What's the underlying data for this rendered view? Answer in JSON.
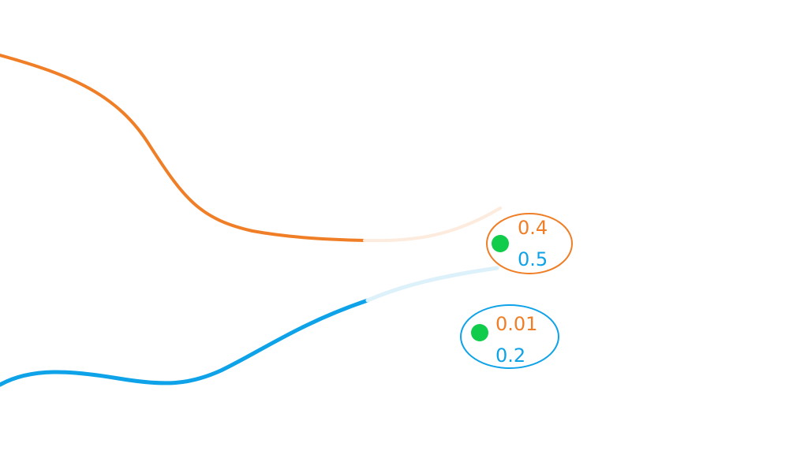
{
  "colors": {
    "orange": "#F07E26",
    "orange_faded": "#FDEBDD",
    "blue": "#0EA2E8",
    "blue_faded": "#DDF1FB",
    "green_dot": "#11CC4A",
    "background": "#FFFFFF"
  },
  "badges": [
    {
      "top_value": "0.4",
      "bottom_value": "0.5",
      "border_color": "orange",
      "has_dot": true
    },
    {
      "top_value": "0.01",
      "bottom_value": "0.2",
      "border_color": "blue",
      "has_dot": true
    }
  ],
  "curves": [
    {
      "name": "orange-curve",
      "color": "orange",
      "has_faded_extension": true
    },
    {
      "name": "blue-curve",
      "color": "blue",
      "has_faded_extension": true
    }
  ]
}
